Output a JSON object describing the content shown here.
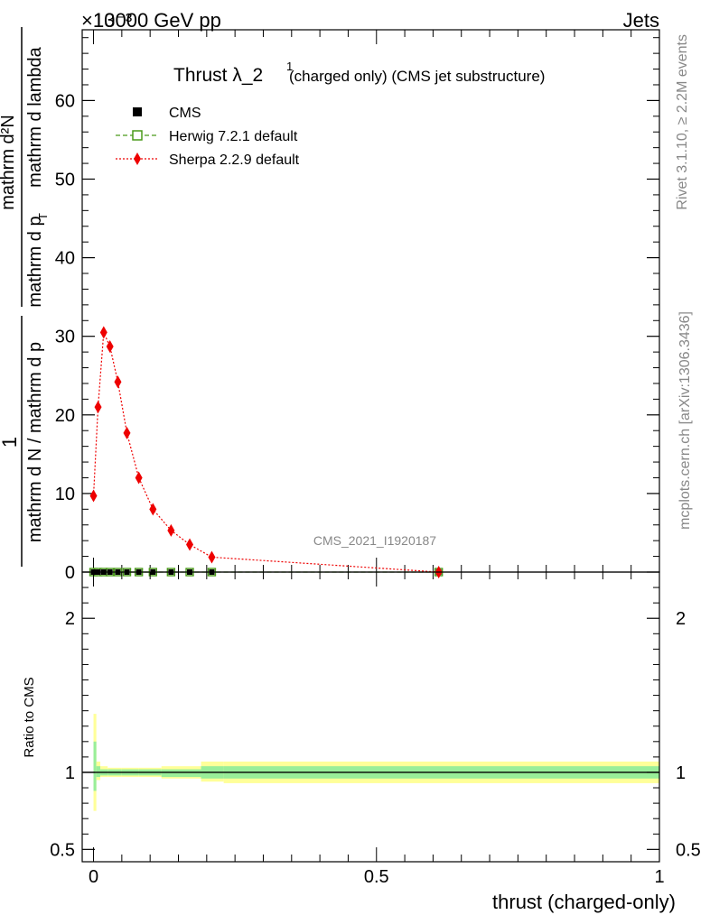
{
  "header": {
    "left": "13000 GeV pp",
    "right": "Jets",
    "exponent": "×10⁻³"
  },
  "side_labels": {
    "rivet": "Rivet 3.1.10, ≥ 2.2M events",
    "mcplots": "mcplots.cern.ch [arXiv:1306.3436]"
  },
  "watermark": "CMS_2021_I1920187",
  "title": {
    "main": "Thrust λ_2",
    "sup": "1",
    "rest": " (charged only) (CMS jet substructure)"
  },
  "ylabel": {
    "numerator": "1",
    "denominator": "mathrm d N / mathrm d p",
    "numerator2": "mathrm d²N",
    "denominator2": "mathrm d p",
    "t": "T",
    "suffix": " mathrm d lambda"
  },
  "xlabel": "thrust (charged-only)",
  "ratio_ylabel": "Ratio to CMS",
  "legend": [
    {
      "name": "CMS",
      "color": "#000000",
      "marker": "square"
    },
    {
      "name": "Herwig 7.2.1 default",
      "color": "#4a9a1a",
      "marker": "open-square"
    },
    {
      "name": "Sherpa 2.2.9 default",
      "color": "#ee0000",
      "marker": "diamond"
    }
  ],
  "chart_data": {
    "type": "line",
    "main": {
      "ylim": [
        0,
        69
      ],
      "y_scale": 0.001,
      "yticks": [
        0,
        10,
        20,
        30,
        40,
        50,
        60
      ],
      "xlim": [
        -0.02,
        1.0
      ],
      "series": [
        {
          "name": "Sherpa 2.2.9 default",
          "x": [
            0.0,
            0.008,
            0.018,
            0.029,
            0.043,
            0.059,
            0.08,
            0.105,
            0.137,
            0.17,
            0.209,
            0.61
          ],
          "y": [
            9.7,
            21.0,
            30.5,
            28.7,
            24.2,
            17.7,
            12.0,
            8.0,
            5.3,
            3.5,
            1.9,
            0.0
          ]
        },
        {
          "name": "Herwig 7.2.1 default",
          "x": [
            0.0,
            0.008,
            0.018,
            0.029,
            0.043,
            0.059,
            0.08,
            0.105,
            0.137,
            0.17,
            0.209,
            0.61
          ],
          "y": [
            0,
            0,
            0,
            0,
            0,
            0,
            0,
            0,
            0,
            0,
            0,
            0
          ]
        },
        {
          "name": "CMS",
          "x": [
            0.0,
            0.008,
            0.018,
            0.029,
            0.043,
            0.059,
            0.08,
            0.105,
            0.137,
            0.17,
            0.209,
            0.61
          ],
          "y": [
            0,
            0,
            0,
            0,
            0,
            0,
            0,
            0,
            0,
            0,
            0,
            0
          ]
        }
      ]
    },
    "ratio": {
      "ylim": [
        0.42,
        2.3
      ],
      "yticks": [
        0.5,
        1,
        2
      ],
      "ytick_labels": [
        "0.5",
        "1",
        "2"
      ],
      "xticks": [
        0,
        0.5,
        1
      ],
      "xtick_labels": [
        "0",
        "0.5",
        "1"
      ],
      "bands": {
        "x_edges": [
          0.0,
          0.005,
          0.012,
          0.025,
          0.05,
          0.08,
          0.12,
          0.19,
          0.23,
          1.0
        ],
        "yellow_hi": [
          1.38,
          1.07,
          1.04,
          1.03,
          1.03,
          1.03,
          1.04,
          1.07,
          1.07
        ],
        "yellow_lo": [
          0.75,
          0.95,
          0.97,
          0.97,
          0.97,
          0.97,
          0.96,
          0.94,
          0.93
        ],
        "green_hi": [
          1.2,
          1.04,
          1.02,
          1.02,
          1.02,
          1.02,
          1.02,
          1.04,
          1.04
        ],
        "green_lo": [
          0.88,
          0.97,
          0.98,
          0.98,
          0.98,
          0.98,
          0.97,
          0.96,
          0.96
        ]
      }
    }
  }
}
